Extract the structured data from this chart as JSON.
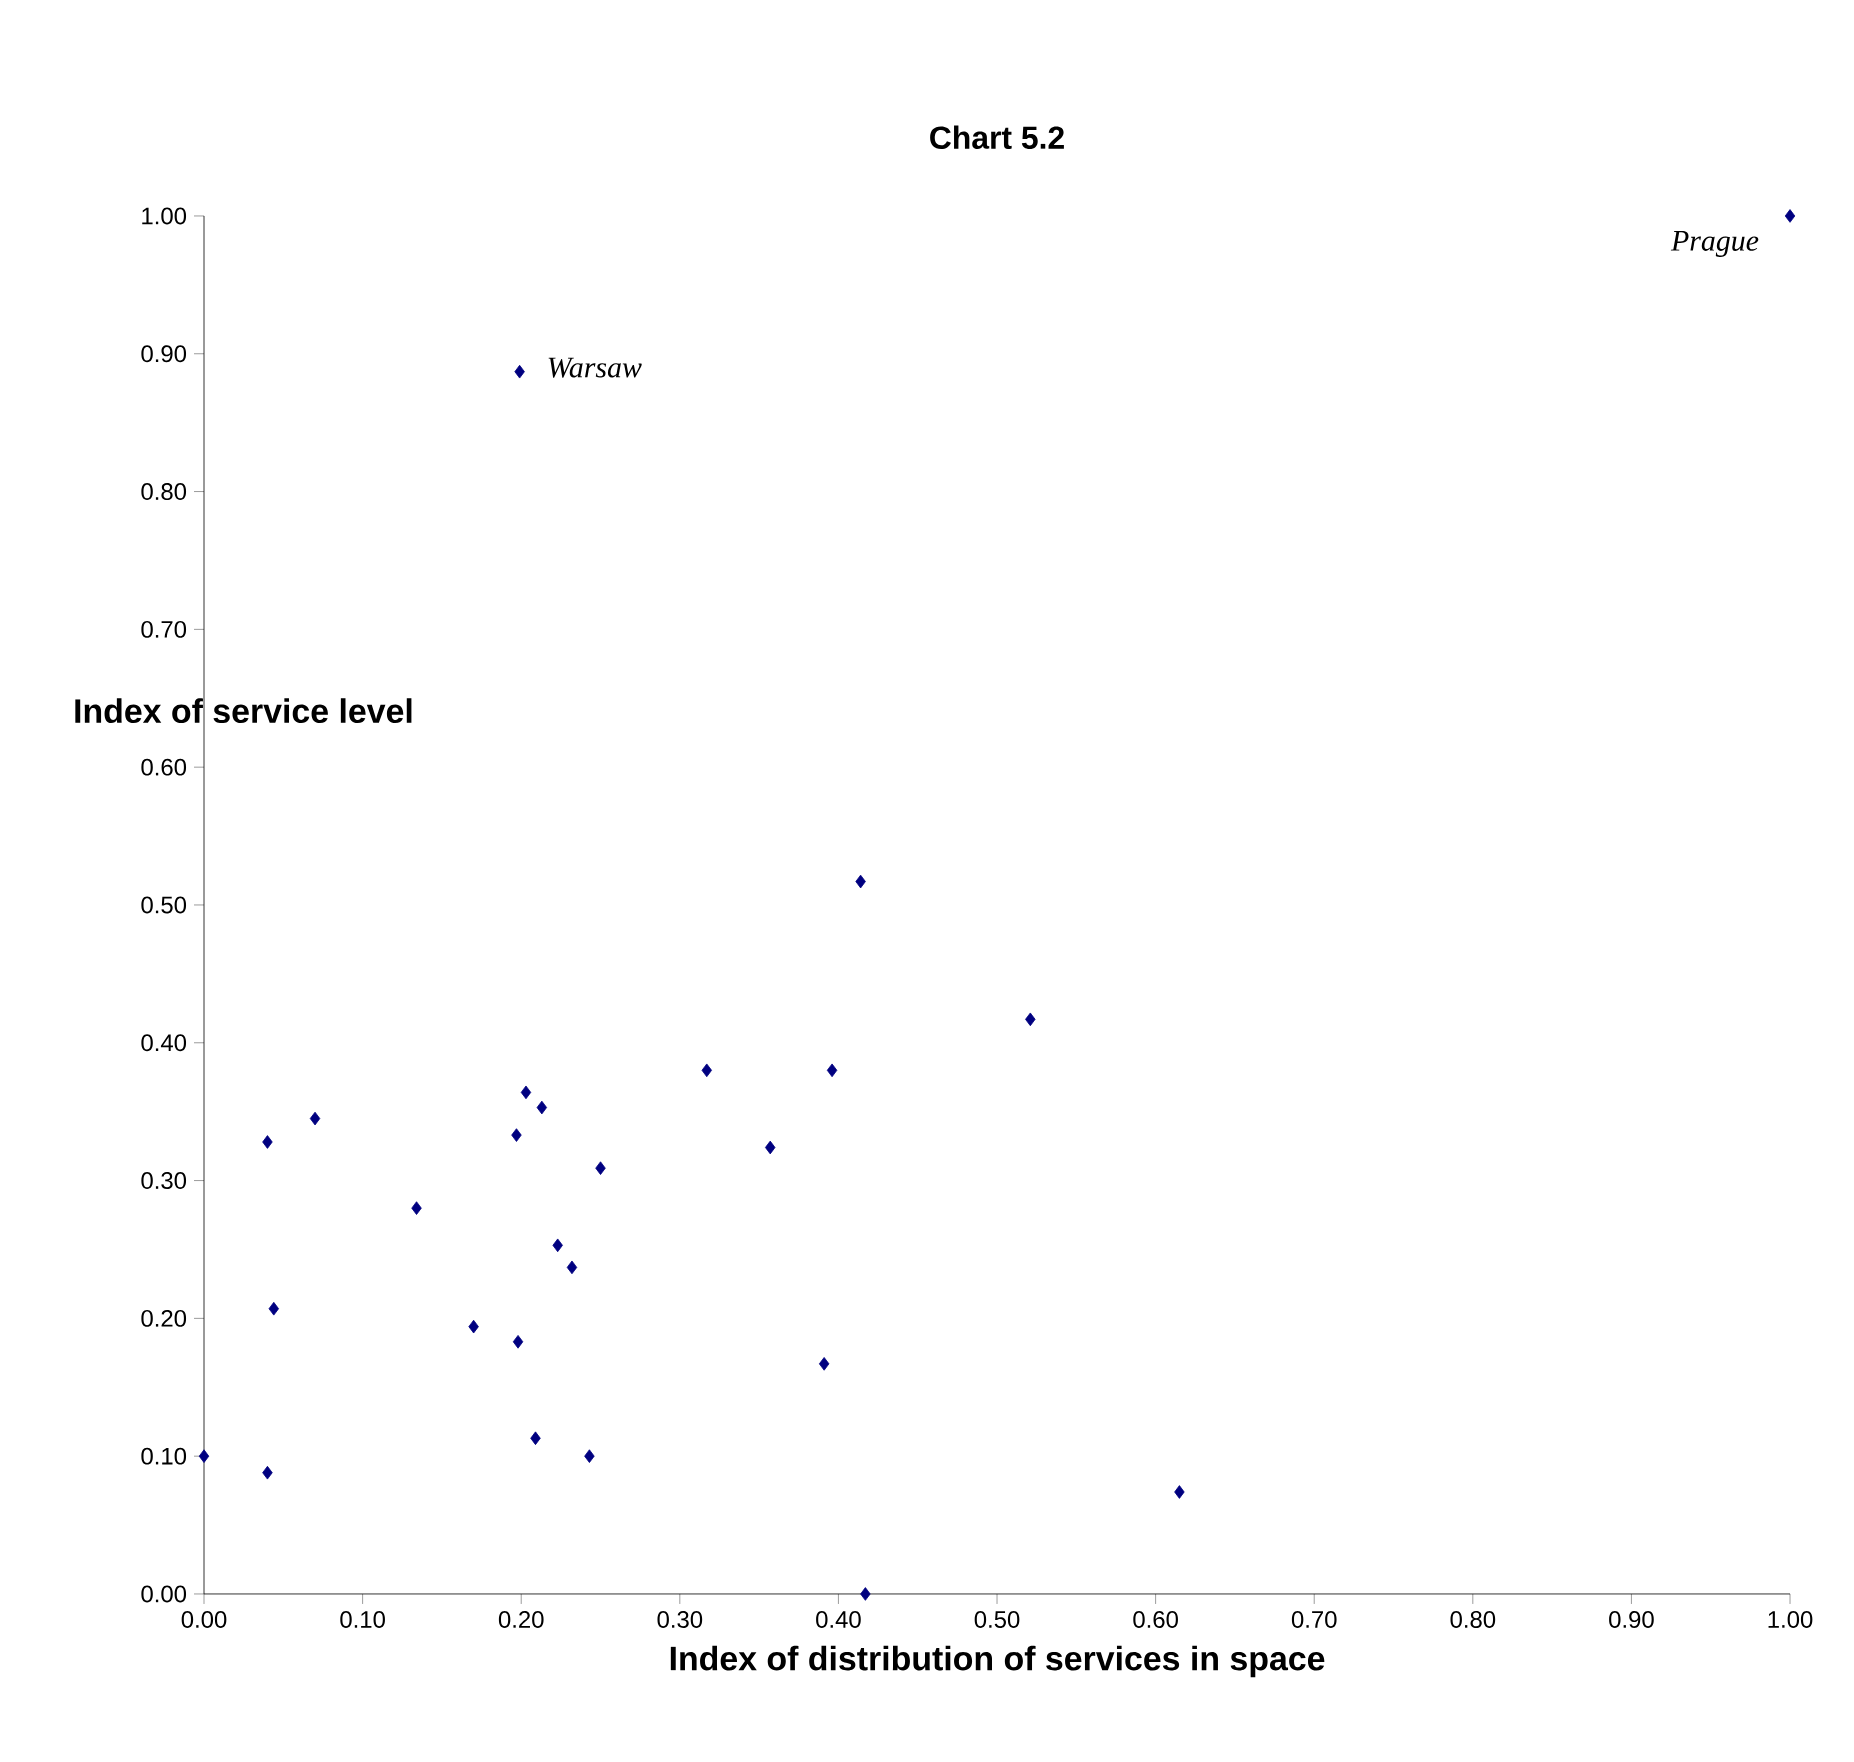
{
  "chart_data": {
    "type": "scatter",
    "title": "Chart 5.2",
    "xlabel": "Index of distribution of services in space",
    "ylabel": "Index of service level",
    "marker": "diamond",
    "grid": false,
    "xlim": [
      0,
      1
    ],
    "ylim": [
      0,
      1
    ],
    "xticks": [
      {
        "value": 0,
        "label": "0.00"
      },
      {
        "value": 0.1,
        "label": "0.10"
      },
      {
        "value": 0.2,
        "label": "0.20"
      },
      {
        "value": 0.3,
        "label": "0.30"
      },
      {
        "value": 0.4,
        "label": "0.40"
      },
      {
        "value": 0.5,
        "label": "0.50"
      },
      {
        "value": 0.6,
        "label": "0.60"
      },
      {
        "value": 0.7,
        "label": "0.70"
      },
      {
        "value": 0.8,
        "label": "0.80"
      },
      {
        "value": 0.9,
        "label": "0.90"
      },
      {
        "value": 1,
        "label": "1.00"
      }
    ],
    "yticks": [
      {
        "value": 0,
        "label": "0.00"
      },
      {
        "value": 0.1,
        "label": "0.10"
      },
      {
        "value": 0.2,
        "label": "0.20"
      },
      {
        "value": 0.3,
        "label": "0.30"
      },
      {
        "value": 0.4,
        "label": "0.40"
      },
      {
        "value": 0.5,
        "label": "0.50"
      },
      {
        "value": 0.6,
        "label": "0.60"
      },
      {
        "value": 0.7,
        "label": "0.70"
      },
      {
        "value": 0.8,
        "label": "0.80"
      },
      {
        "value": 0.9,
        "label": "0.90"
      },
      {
        "value": 1,
        "label": "1.00"
      }
    ],
    "series": [
      {
        "color": "#000080",
        "x": [
          0,
          0.04,
          0.04,
          0.044,
          0.07,
          0.134,
          0.17,
          0.198,
          0.197,
          0.203,
          0.213,
          0.209,
          0.223,
          0.232,
          0.243,
          0.25,
          0.317,
          0.357,
          0.391,
          0.396,
          0.414,
          0.417,
          0.521,
          0.615,
          0.199,
          1
        ],
        "values": [
          0.1,
          0.088,
          0.328,
          0.207,
          0.345,
          0.28,
          0.194,
          0.183,
          0.333,
          0.364,
          0.353,
          0.113,
          0.253,
          0.237,
          0.1,
          0.309,
          0.38,
          0.324,
          0.167,
          0.38,
          0.517,
          0,
          0.417,
          0.074,
          0.887,
          1
        ]
      }
    ],
    "annotations": [
      {
        "text": "Warsaw",
        "x": 0.199,
        "y": 0.887
      },
      {
        "text": "Prague",
        "x": 1,
        "y": 1
      }
    ]
  }
}
